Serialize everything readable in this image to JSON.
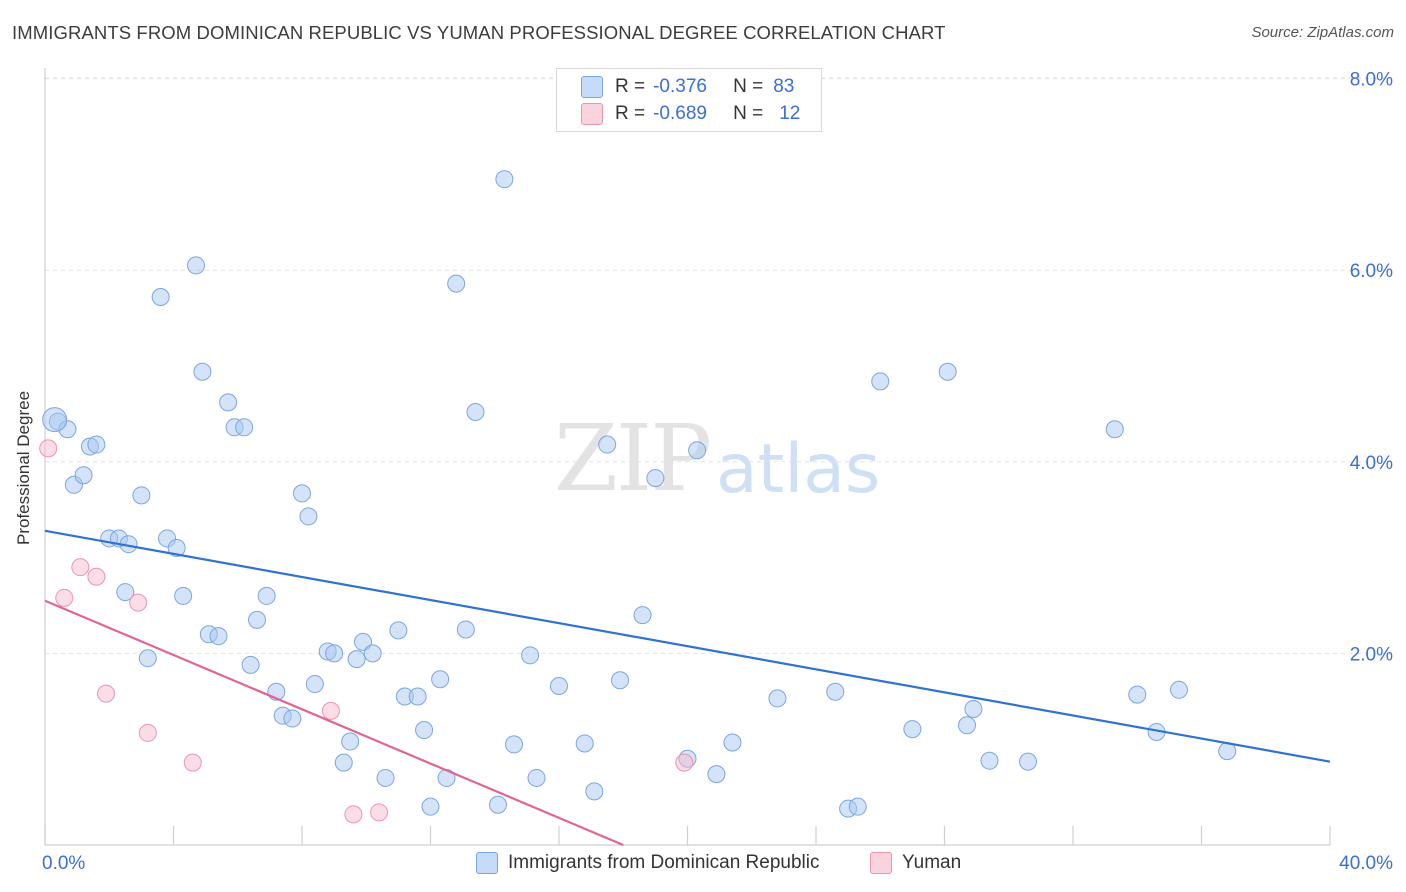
{
  "title": "IMMIGRANTS FROM DOMINICAN REPUBLIC VS YUMAN PROFESSIONAL DEGREE CORRELATION CHART",
  "source": "Source: ZipAtlas.com",
  "watermark": {
    "zip": "ZIP",
    "atlas": "atlas"
  },
  "chart_data": {
    "type": "scatter",
    "title": "IMMIGRANTS FROM DOMINICAN REPUBLIC VS YUMAN PROFESSIONAL DEGREE CORRELATION CHART",
    "xlabel": "",
    "ylabel": "Professional Degree",
    "xlim": [
      0,
      40
    ],
    "ylim": [
      0,
      8
    ],
    "x_tick_labels": [
      "0.0%",
      "40.0%"
    ],
    "y_ticks": [
      2,
      4,
      6,
      8
    ],
    "y_tick_labels": [
      "2.0%",
      "4.0%",
      "6.0%",
      "8.0%"
    ],
    "grid": true,
    "legend_position": "top-center",
    "series": [
      {
        "name": "Immigrants from Dominican Republic",
        "color": "#a9c8f2",
        "edge_color": "#7aa6e0",
        "line_color": "#2f72d0",
        "R": "-0.376",
        "N": "83",
        "trend": [
          [
            0,
            3.28
          ],
          [
            40,
            0.87
          ]
        ],
        "points": [
          [
            0.4,
            4.42
          ],
          [
            0.7,
            4.34
          ],
          [
            0.9,
            3.76
          ],
          [
            1.2,
            3.86
          ],
          [
            1.4,
            4.16
          ],
          [
            1.6,
            4.18
          ],
          [
            2.0,
            3.2
          ],
          [
            2.3,
            3.2
          ],
          [
            2.6,
            3.14
          ],
          [
            2.5,
            2.64
          ],
          [
            3.0,
            3.65
          ],
          [
            3.2,
            1.95
          ],
          [
            3.6,
            5.72
          ],
          [
            3.8,
            3.2
          ],
          [
            4.1,
            3.1
          ],
          [
            4.3,
            2.6
          ],
          [
            4.7,
            6.05
          ],
          [
            4.9,
            4.94
          ],
          [
            5.1,
            2.2
          ],
          [
            5.4,
            2.18
          ],
          [
            5.7,
            4.62
          ],
          [
            5.9,
            4.36
          ],
          [
            6.2,
            4.36
          ],
          [
            6.4,
            1.88
          ],
          [
            6.6,
            2.35
          ],
          [
            6.9,
            2.6
          ],
          [
            7.2,
            1.6
          ],
          [
            7.4,
            1.35
          ],
          [
            7.7,
            1.32
          ],
          [
            8.0,
            3.67
          ],
          [
            8.2,
            3.43
          ],
          [
            8.4,
            1.68
          ],
          [
            8.8,
            2.02
          ],
          [
            9.0,
            2.0
          ],
          [
            9.3,
            0.86
          ],
          [
            9.5,
            1.08
          ],
          [
            9.7,
            1.94
          ],
          [
            9.9,
            2.12
          ],
          [
            10.2,
            2.0
          ],
          [
            10.6,
            0.7
          ],
          [
            11.0,
            2.24
          ],
          [
            11.2,
            1.55
          ],
          [
            11.6,
            1.55
          ],
          [
            11.8,
            1.2
          ],
          [
            12.0,
            0.4
          ],
          [
            12.3,
            1.73
          ],
          [
            12.5,
            0.7
          ],
          [
            12.8,
            5.86
          ],
          [
            13.1,
            2.25
          ],
          [
            13.4,
            4.52
          ],
          [
            14.1,
            0.42
          ],
          [
            14.3,
            6.95
          ],
          [
            14.6,
            1.05
          ],
          [
            15.1,
            1.98
          ],
          [
            15.3,
            0.7
          ],
          [
            16.0,
            1.66
          ],
          [
            16.8,
            1.06
          ],
          [
            17.1,
            0.56
          ],
          [
            17.5,
            4.18
          ],
          [
            17.9,
            1.72
          ],
          [
            18.6,
            2.4
          ],
          [
            19.0,
            3.83
          ],
          [
            20.0,
            0.9
          ],
          [
            20.3,
            4.12
          ],
          [
            20.9,
            0.74
          ],
          [
            21.4,
            1.07
          ],
          [
            22.8,
            1.53
          ],
          [
            24.6,
            1.6
          ],
          [
            25.0,
            0.38
          ],
          [
            25.3,
            0.4
          ],
          [
            26.0,
            4.84
          ],
          [
            27.0,
            1.21
          ],
          [
            28.1,
            4.94
          ],
          [
            28.7,
            1.25
          ],
          [
            28.9,
            1.42
          ],
          [
            29.4,
            0.88
          ],
          [
            30.6,
            0.87
          ],
          [
            33.3,
            4.34
          ],
          [
            34.0,
            1.57
          ],
          [
            34.6,
            1.18
          ],
          [
            35.3,
            1.62
          ],
          [
            36.8,
            0.98
          ],
          [
            0.3,
            4.44
          ]
        ]
      },
      {
        "name": "Yuman",
        "color": "#f6bccd",
        "edge_color": "#ec94ae",
        "line_color": "#e06592",
        "R": "-0.689",
        "N": "12",
        "trend": [
          [
            0,
            2.55
          ],
          [
            18.0,
            0.0
          ]
        ],
        "points": [
          [
            0.1,
            4.14
          ],
          [
            0.6,
            2.58
          ],
          [
            1.1,
            2.9
          ],
          [
            1.6,
            2.8
          ],
          [
            1.9,
            1.58
          ],
          [
            2.9,
            2.53
          ],
          [
            3.2,
            1.17
          ],
          [
            4.6,
            0.86
          ],
          [
            8.9,
            1.4
          ],
          [
            9.6,
            0.32
          ],
          [
            10.4,
            0.34
          ],
          [
            19.9,
            0.86
          ]
        ]
      }
    ]
  }
}
